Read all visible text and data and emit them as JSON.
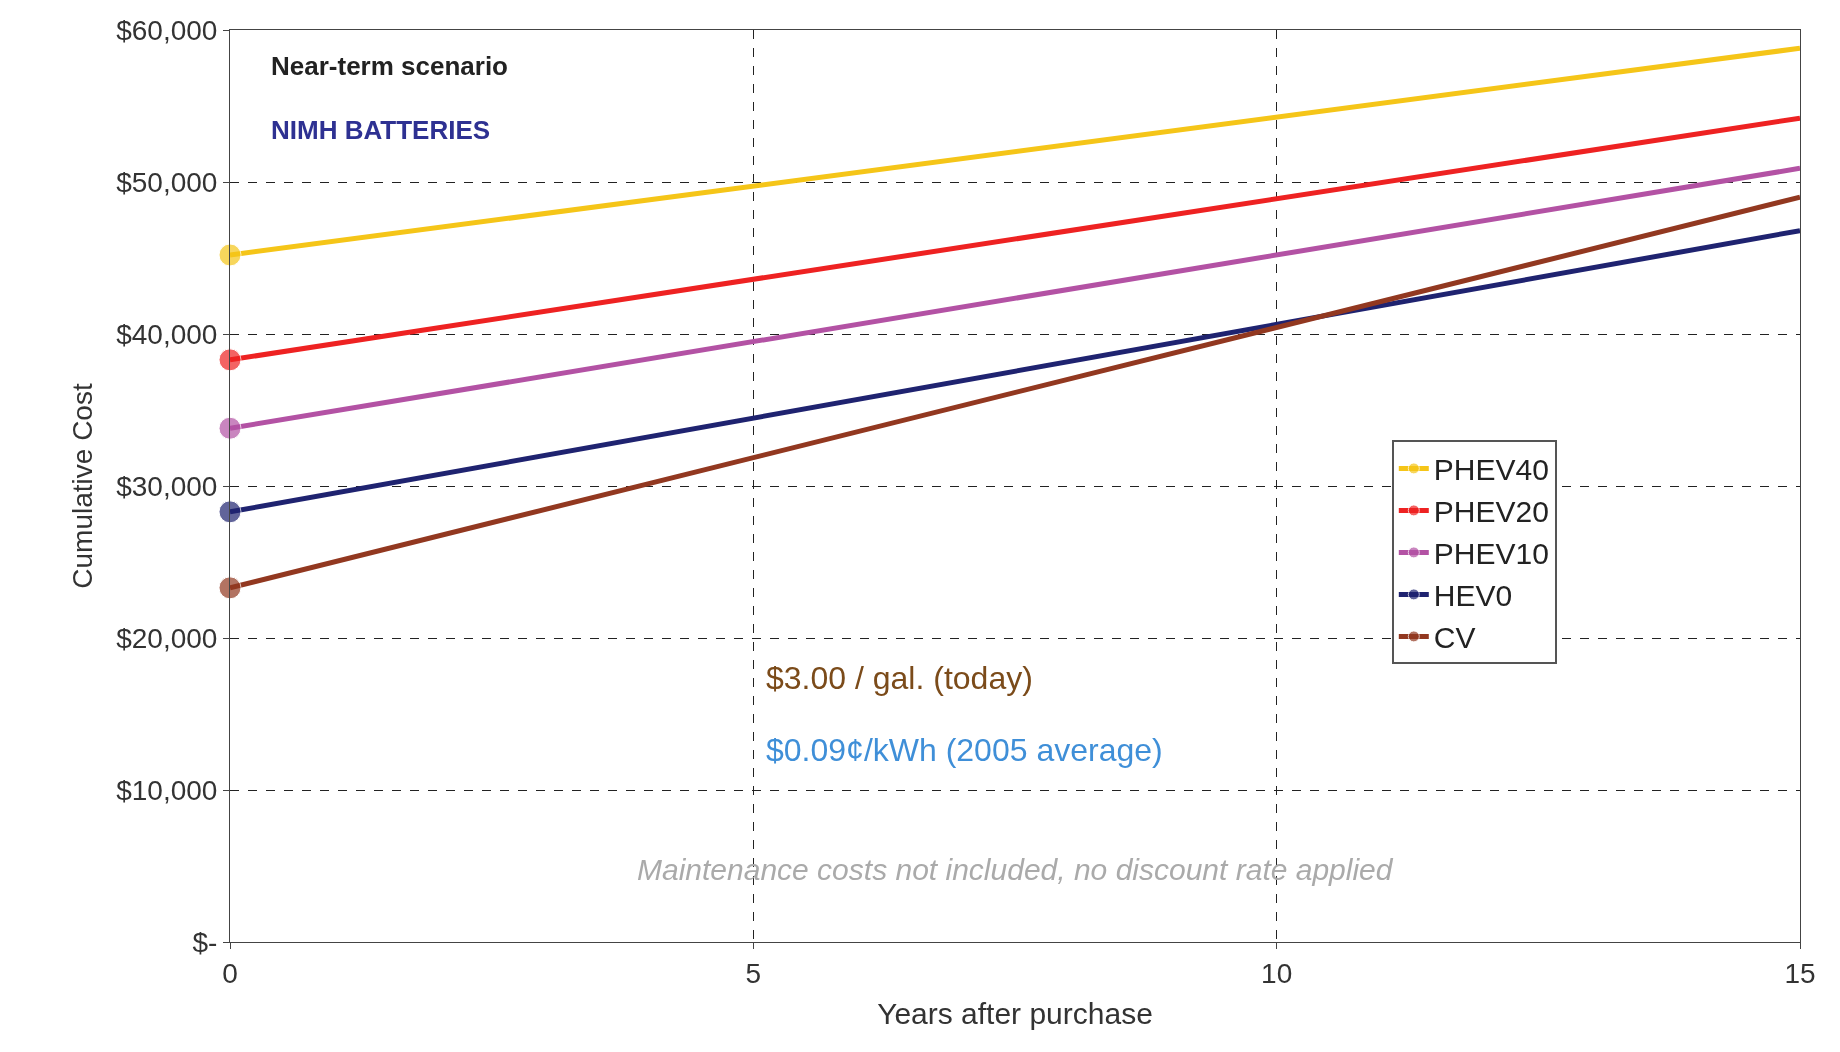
{
  "chart_data": {
    "type": "line",
    "xlabel": "Years after purchase",
    "ylabel": "Cumulative Cost",
    "x": [
      0,
      15
    ],
    "series": [
      {
        "name": "PHEV40",
        "color": "#f5c518",
        "values": [
          45200,
          58800
        ]
      },
      {
        "name": "PHEV20",
        "color": "#ee2222",
        "values": [
          38300,
          54200
        ]
      },
      {
        "name": "PHEV10",
        "color": "#b352a4",
        "values": [
          33800,
          50900
        ]
      },
      {
        "name": "HEV0",
        "color": "#1f2370",
        "values": [
          28300,
          46800
        ]
      },
      {
        "name": "CV",
        "color": "#923820",
        "values": [
          23300,
          49000
        ]
      }
    ],
    "xlim": [
      0,
      15
    ],
    "xticks": [
      0,
      5,
      10,
      15
    ],
    "ylim": [
      0,
      60000
    ],
    "yticks": [
      {
        "value": 0,
        "label": "$-"
      },
      {
        "value": 10000,
        "label": "$10,000"
      },
      {
        "value": 20000,
        "label": "$20,000"
      },
      {
        "value": 30000,
        "label": "$30,000"
      },
      {
        "value": 40000,
        "label": "$40,000"
      },
      {
        "value": 50000,
        "label": "$50,000"
      },
      {
        "value": 60000,
        "label": "$60,000"
      }
    ],
    "annotations": [
      "Near-term scenario",
      "NIMH BATTERIES",
      "$3.00 / gal. (today)",
      "$0.09¢/kWh (2005 average)",
      "Maintenance costs not included, no discount rate applied"
    ],
    "grid": true,
    "legend": "right",
    "marker": "circle",
    "line_style": "solid"
  }
}
